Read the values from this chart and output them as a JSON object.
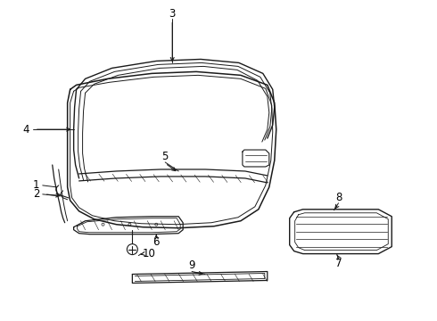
{
  "bg_color": "#ffffff",
  "line_color": "#1a1a1a",
  "label_color": "#000000",
  "font_size": 8.5,
  "line_width": 0.9
}
